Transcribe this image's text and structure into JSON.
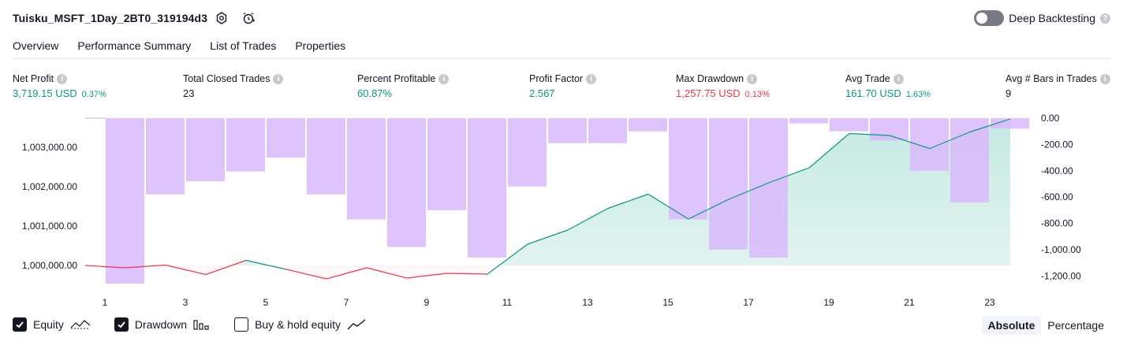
{
  "header": {
    "title": "Tuisku_MSFT_1Day_2BT0_319194d3",
    "deep_backtesting_label": "Deep Backtesting",
    "deep_backtesting_enabled": false
  },
  "tabs": [
    {
      "label": "Overview",
      "active": true
    },
    {
      "label": "Performance Summary",
      "active": false
    },
    {
      "label": "List of Trades",
      "active": false
    },
    {
      "label": "Properties",
      "active": false
    }
  ],
  "metrics": [
    {
      "label": "Net Profit",
      "value": "3,719.15 USD",
      "pct": "0.37%",
      "tone": "pos"
    },
    {
      "label": "Total Closed Trades",
      "value": "23",
      "pct": "",
      "tone": "neu"
    },
    {
      "label": "Percent Profitable",
      "value": "60.87%",
      "pct": "",
      "tone": "pos"
    },
    {
      "label": "Profit Factor",
      "value": "2.567",
      "pct": "",
      "tone": "pos"
    },
    {
      "label": "Max Drawdown",
      "value": "1,257.75 USD",
      "pct": "0.13%",
      "tone": "neg"
    },
    {
      "label": "Avg Trade",
      "value": "161.70 USD",
      "pct": "1.63%",
      "tone": "pos"
    },
    {
      "label": "Avg # Bars in Trades",
      "value": "9",
      "pct": "",
      "tone": "neu"
    }
  ],
  "chart_data": {
    "type": "line",
    "x": [
      1,
      2,
      3,
      4,
      5,
      6,
      7,
      8,
      9,
      10,
      11,
      12,
      13,
      14,
      15,
      16,
      17,
      18,
      19,
      20,
      21,
      22,
      23,
      24
    ],
    "x_ticks": [
      "1",
      "3",
      "5",
      "7",
      "9",
      "11",
      "13",
      "15",
      "17",
      "19",
      "21",
      "23"
    ],
    "series": [
      {
        "name": "Equity",
        "kind": "area",
        "values": [
          1000000,
          999940,
          1000010,
          999770,
          1000130,
          999900,
          999660,
          999940,
          999680,
          999800,
          999780,
          1000540,
          1000900,
          1001450,
          1001810,
          1001180,
          1001680,
          1002100,
          1002480,
          1003350,
          1003300,
          1002970,
          1003390,
          1003719
        ]
      },
      {
        "name": "Drawdown",
        "kind": "bar",
        "axis": "right",
        "values": [
          0,
          -1257.75,
          -580,
          -480,
          -405,
          -300,
          -580,
          -770,
          -980,
          -700,
          -1060,
          -520,
          -190,
          -190,
          -100,
          -770,
          -1000,
          -1060,
          -40,
          -100,
          -170,
          -400,
          -640,
          -80
        ]
      }
    ],
    "left_ticks": [
      1000000,
      1001000,
      1002000,
      1003000
    ],
    "left_tick_labels": [
      "1,000,000.00",
      "1,001,000.00",
      "1,002,000.00",
      "1,003,000.00"
    ],
    "right_ticks": [
      0,
      -200,
      -400,
      -600,
      -800,
      -1000,
      -1200
    ],
    "right_tick_labels": [
      "0.00",
      "-200.00",
      "-400.00",
      "-600.00",
      "-800.00",
      "-1,000.00",
      "-1,200.00"
    ],
    "colors": {
      "equity_pos": "#089981",
      "equity_neg": "#f23645",
      "drawdown": "#d9b8fc",
      "area_pos": "#c2e8df",
      "area_neg": "#fde1e3"
    }
  },
  "legend": [
    {
      "label": "Equity",
      "checked": true,
      "icon": "equity-line-icon"
    },
    {
      "label": "Drawdown",
      "checked": true,
      "icon": "bars-icon"
    },
    {
      "label": "Buy & hold equity",
      "checked": false,
      "icon": "trend-line-icon"
    }
  ],
  "mode": {
    "options": [
      "Absolute",
      "Percentage"
    ],
    "selected": "Absolute"
  }
}
